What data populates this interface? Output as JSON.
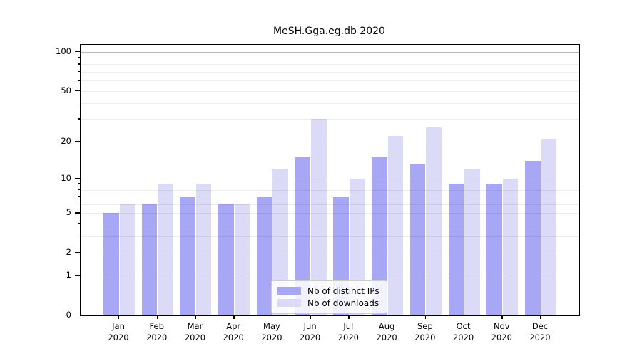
{
  "title": "MeSH.Gga.eg.db 2020",
  "chart_data": {
    "type": "bar",
    "title": "MeSH.Gga.eg.db 2020",
    "categories": [
      "Jan 2020",
      "Feb 2020",
      "Mar 2020",
      "Apr 2020",
      "May 2020",
      "Jun 2020",
      "Jul 2020",
      "Aug 2020",
      "Sep 2020",
      "Oct 2020",
      "Nov 2020",
      "Dec 2020"
    ],
    "month_labels": [
      "Jan",
      "Feb",
      "Mar",
      "Apr",
      "May",
      "Jun",
      "Jul",
      "Aug",
      "Sep",
      "Oct",
      "Nov",
      "Dec"
    ],
    "year_label": "2020",
    "series": [
      {
        "name": "Nb of distinct IPs",
        "color": "#a7a7f6",
        "values": [
          5,
          6,
          7,
          6,
          7,
          15,
          7,
          15,
          13,
          9,
          9,
          14
        ]
      },
      {
        "name": "Nb of downloads",
        "color": "#dbdbf8",
        "values": [
          6,
          9,
          9,
          6,
          12,
          30,
          10,
          22,
          26,
          12,
          10,
          21
        ]
      }
    ],
    "xlabel": "",
    "ylabel": "",
    "yscale": "log1p",
    "ylim": [
      0,
      113
    ],
    "yticks": [
      100,
      50,
      20,
      10,
      5,
      2,
      1,
      0
    ],
    "grid_major": [
      1,
      10,
      100
    ],
    "grid_minor": [
      2,
      3,
      4,
      5,
      6,
      7,
      8,
      9,
      20,
      30,
      40,
      50,
      60,
      70,
      80,
      90
    ],
    "grid": true,
    "legend_position": "lower center"
  }
}
